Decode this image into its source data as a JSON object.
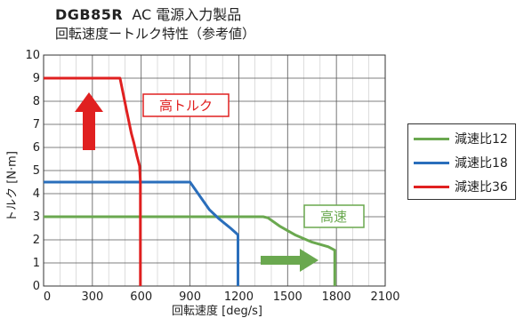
{
  "header": {
    "model": "DGB85R",
    "subtitle": "AC 電源入力製品",
    "title": "回転速度ートルク特性（参考値）"
  },
  "chart_data": {
    "type": "line",
    "xlabel": "回転速度 [deg/s]",
    "ylabel": "トルク [N·m]",
    "xlim": [
      0,
      2100
    ],
    "ylim": [
      0,
      10
    ],
    "xticks": [
      "0",
      "300",
      "600",
      "900",
      "1200",
      "1500",
      "1800",
      "2100"
    ],
    "yticks": [
      "0",
      "1",
      "2",
      "3",
      "4",
      "5",
      "6",
      "7",
      "8",
      "9",
      "10"
    ],
    "grid": true,
    "legend_position": "right",
    "series": [
      {
        "name": "減速比12",
        "color": "#6aa84f",
        "points": [
          [
            0,
            3
          ],
          [
            1350,
            3
          ],
          [
            1380,
            2.95
          ],
          [
            1450,
            2.6
          ],
          [
            1550,
            2.2
          ],
          [
            1650,
            1.9
          ],
          [
            1750,
            1.7
          ],
          [
            1790,
            1.55
          ],
          [
            1790,
            0
          ]
        ]
      },
      {
        "name": "減速比18",
        "color": "#2a6ebb",
        "points": [
          [
            0,
            4.5
          ],
          [
            900,
            4.5
          ],
          [
            950,
            4.0
          ],
          [
            1020,
            3.3
          ],
          [
            1080,
            2.9
          ],
          [
            1150,
            2.5
          ],
          [
            1190,
            2.25
          ],
          [
            1195,
            2.2
          ],
          [
            1195,
            0
          ]
        ]
      },
      {
        "name": "減速比36",
        "color": "#e02020",
        "points": [
          [
            0,
            9
          ],
          [
            470,
            9
          ],
          [
            490,
            8.3
          ],
          [
            510,
            7.6
          ],
          [
            540,
            6.6
          ],
          [
            555,
            6.2
          ],
          [
            575,
            5.6
          ],
          [
            590,
            5.2
          ],
          [
            595,
            4.5
          ],
          [
            595,
            0
          ]
        ]
      }
    ],
    "annotations": [
      {
        "text": "高トルク",
        "color": "#e02020",
        "arrow": "up"
      },
      {
        "text": "高速",
        "color": "#6aa84f",
        "arrow": "right"
      }
    ]
  }
}
